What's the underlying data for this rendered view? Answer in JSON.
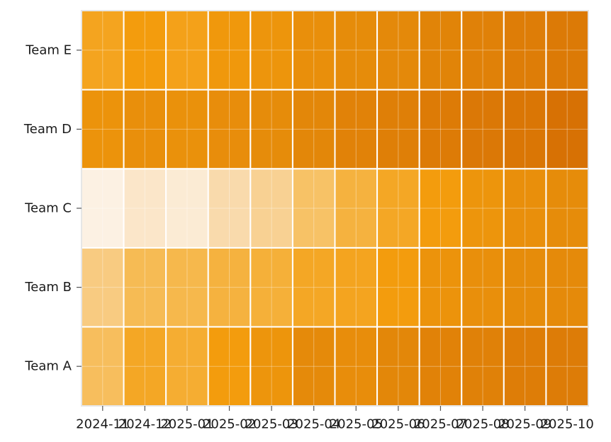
{
  "chart_data": {
    "type": "heatmap",
    "title": "",
    "xlabel": "",
    "ylabel": "",
    "x": [
      "2024-11",
      "2024-12",
      "2025-01",
      "2025-02",
      "2025-03",
      "2025-04",
      "2025-05",
      "2025-06",
      "2025-07",
      "2025-08",
      "2025-09",
      "2025-10"
    ],
    "y": [
      "Team A",
      "Team B",
      "Team C",
      "Team D",
      "Team E"
    ],
    "values": [
      [
        0.42,
        0.58,
        0.54,
        0.66,
        0.74,
        0.86,
        0.82,
        0.88,
        0.92,
        0.93,
        0.96,
        0.97
      ],
      [
        0.34,
        0.44,
        0.46,
        0.5,
        0.52,
        0.58,
        0.6,
        0.66,
        0.76,
        0.8,
        0.84,
        0.86
      ],
      [
        0.05,
        0.14,
        0.1,
        0.24,
        0.3,
        0.4,
        0.5,
        0.58,
        0.66,
        0.74,
        0.8,
        0.84
      ],
      [
        0.76,
        0.8,
        0.78,
        0.82,
        0.84,
        0.88,
        0.92,
        0.95,
        0.98,
        1.0,
        1.02,
        1.06
      ],
      [
        0.6,
        0.66,
        0.62,
        0.7,
        0.74,
        0.8,
        0.84,
        0.87,
        0.91,
        0.93,
        0.96,
        0.99
      ]
    ],
    "colorscale": [
      "#fcf1e3",
      "#f9d9a8",
      "#f6b94e",
      "#f39c0d",
      "#e58a0a",
      "#d77104"
    ],
    "grid": true,
    "legend": "none"
  }
}
